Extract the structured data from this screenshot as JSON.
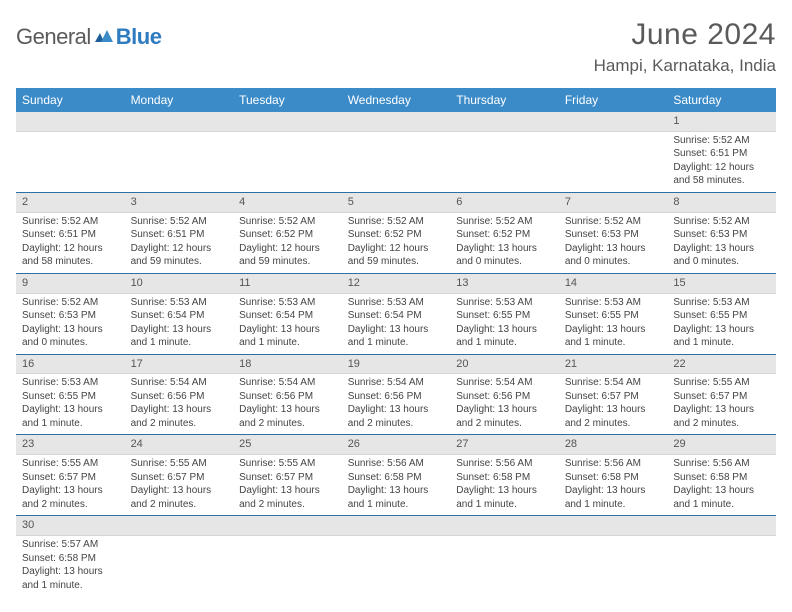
{
  "brand": {
    "word1": "General",
    "word2": "Blue"
  },
  "title": {
    "month": "June 2024",
    "location": "Hampi, Karnataka, India"
  },
  "colors": {
    "header_bg": "#3b8bc9",
    "header_text": "#ffffff",
    "daynum_bg": "#e6e6e6",
    "row_border": "#2f6fa8",
    "body_text": "#444444",
    "title_text": "#5a5a5a",
    "brand_blue": "#2f7bbf"
  },
  "layout": {
    "type": "table",
    "columns": 7,
    "rows": 6,
    "cell_fontsize_pt": 7.5,
    "header_fontsize_pt": 9,
    "title_fontsize_pt": 22.5,
    "location_fontsize_pt": 13
  },
  "weekdays": [
    "Sunday",
    "Monday",
    "Tuesday",
    "Wednesday",
    "Thursday",
    "Friday",
    "Saturday"
  ],
  "weeks": [
    [
      null,
      null,
      null,
      null,
      null,
      null,
      {
        "n": "1",
        "sr": "Sunrise: 5:52 AM",
        "ss": "Sunset: 6:51 PM",
        "dl": "Daylight: 12 hours and 58 minutes."
      }
    ],
    [
      {
        "n": "2",
        "sr": "Sunrise: 5:52 AM",
        "ss": "Sunset: 6:51 PM",
        "dl": "Daylight: 12 hours and 58 minutes."
      },
      {
        "n": "3",
        "sr": "Sunrise: 5:52 AM",
        "ss": "Sunset: 6:51 PM",
        "dl": "Daylight: 12 hours and 59 minutes."
      },
      {
        "n": "4",
        "sr": "Sunrise: 5:52 AM",
        "ss": "Sunset: 6:52 PM",
        "dl": "Daylight: 12 hours and 59 minutes."
      },
      {
        "n": "5",
        "sr": "Sunrise: 5:52 AM",
        "ss": "Sunset: 6:52 PM",
        "dl": "Daylight: 12 hours and 59 minutes."
      },
      {
        "n": "6",
        "sr": "Sunrise: 5:52 AM",
        "ss": "Sunset: 6:52 PM",
        "dl": "Daylight: 13 hours and 0 minutes."
      },
      {
        "n": "7",
        "sr": "Sunrise: 5:52 AM",
        "ss": "Sunset: 6:53 PM",
        "dl": "Daylight: 13 hours and 0 minutes."
      },
      {
        "n": "8",
        "sr": "Sunrise: 5:52 AM",
        "ss": "Sunset: 6:53 PM",
        "dl": "Daylight: 13 hours and 0 minutes."
      }
    ],
    [
      {
        "n": "9",
        "sr": "Sunrise: 5:52 AM",
        "ss": "Sunset: 6:53 PM",
        "dl": "Daylight: 13 hours and 0 minutes."
      },
      {
        "n": "10",
        "sr": "Sunrise: 5:53 AM",
        "ss": "Sunset: 6:54 PM",
        "dl": "Daylight: 13 hours and 1 minute."
      },
      {
        "n": "11",
        "sr": "Sunrise: 5:53 AM",
        "ss": "Sunset: 6:54 PM",
        "dl": "Daylight: 13 hours and 1 minute."
      },
      {
        "n": "12",
        "sr": "Sunrise: 5:53 AM",
        "ss": "Sunset: 6:54 PM",
        "dl": "Daylight: 13 hours and 1 minute."
      },
      {
        "n": "13",
        "sr": "Sunrise: 5:53 AM",
        "ss": "Sunset: 6:55 PM",
        "dl": "Daylight: 13 hours and 1 minute."
      },
      {
        "n": "14",
        "sr": "Sunrise: 5:53 AM",
        "ss": "Sunset: 6:55 PM",
        "dl": "Daylight: 13 hours and 1 minute."
      },
      {
        "n": "15",
        "sr": "Sunrise: 5:53 AM",
        "ss": "Sunset: 6:55 PM",
        "dl": "Daylight: 13 hours and 1 minute."
      }
    ],
    [
      {
        "n": "16",
        "sr": "Sunrise: 5:53 AM",
        "ss": "Sunset: 6:55 PM",
        "dl": "Daylight: 13 hours and 1 minute."
      },
      {
        "n": "17",
        "sr": "Sunrise: 5:54 AM",
        "ss": "Sunset: 6:56 PM",
        "dl": "Daylight: 13 hours and 2 minutes."
      },
      {
        "n": "18",
        "sr": "Sunrise: 5:54 AM",
        "ss": "Sunset: 6:56 PM",
        "dl": "Daylight: 13 hours and 2 minutes."
      },
      {
        "n": "19",
        "sr": "Sunrise: 5:54 AM",
        "ss": "Sunset: 6:56 PM",
        "dl": "Daylight: 13 hours and 2 minutes."
      },
      {
        "n": "20",
        "sr": "Sunrise: 5:54 AM",
        "ss": "Sunset: 6:56 PM",
        "dl": "Daylight: 13 hours and 2 minutes."
      },
      {
        "n": "21",
        "sr": "Sunrise: 5:54 AM",
        "ss": "Sunset: 6:57 PM",
        "dl": "Daylight: 13 hours and 2 minutes."
      },
      {
        "n": "22",
        "sr": "Sunrise: 5:55 AM",
        "ss": "Sunset: 6:57 PM",
        "dl": "Daylight: 13 hours and 2 minutes."
      }
    ],
    [
      {
        "n": "23",
        "sr": "Sunrise: 5:55 AM",
        "ss": "Sunset: 6:57 PM",
        "dl": "Daylight: 13 hours and 2 minutes."
      },
      {
        "n": "24",
        "sr": "Sunrise: 5:55 AM",
        "ss": "Sunset: 6:57 PM",
        "dl": "Daylight: 13 hours and 2 minutes."
      },
      {
        "n": "25",
        "sr": "Sunrise: 5:55 AM",
        "ss": "Sunset: 6:57 PM",
        "dl": "Daylight: 13 hours and 2 minutes."
      },
      {
        "n": "26",
        "sr": "Sunrise: 5:56 AM",
        "ss": "Sunset: 6:58 PM",
        "dl": "Daylight: 13 hours and 1 minute."
      },
      {
        "n": "27",
        "sr": "Sunrise: 5:56 AM",
        "ss": "Sunset: 6:58 PM",
        "dl": "Daylight: 13 hours and 1 minute."
      },
      {
        "n": "28",
        "sr": "Sunrise: 5:56 AM",
        "ss": "Sunset: 6:58 PM",
        "dl": "Daylight: 13 hours and 1 minute."
      },
      {
        "n": "29",
        "sr": "Sunrise: 5:56 AM",
        "ss": "Sunset: 6:58 PM",
        "dl": "Daylight: 13 hours and 1 minute."
      }
    ],
    [
      {
        "n": "30",
        "sr": "Sunrise: 5:57 AM",
        "ss": "Sunset: 6:58 PM",
        "dl": "Daylight: 13 hours and 1 minute."
      },
      null,
      null,
      null,
      null,
      null,
      null
    ]
  ]
}
